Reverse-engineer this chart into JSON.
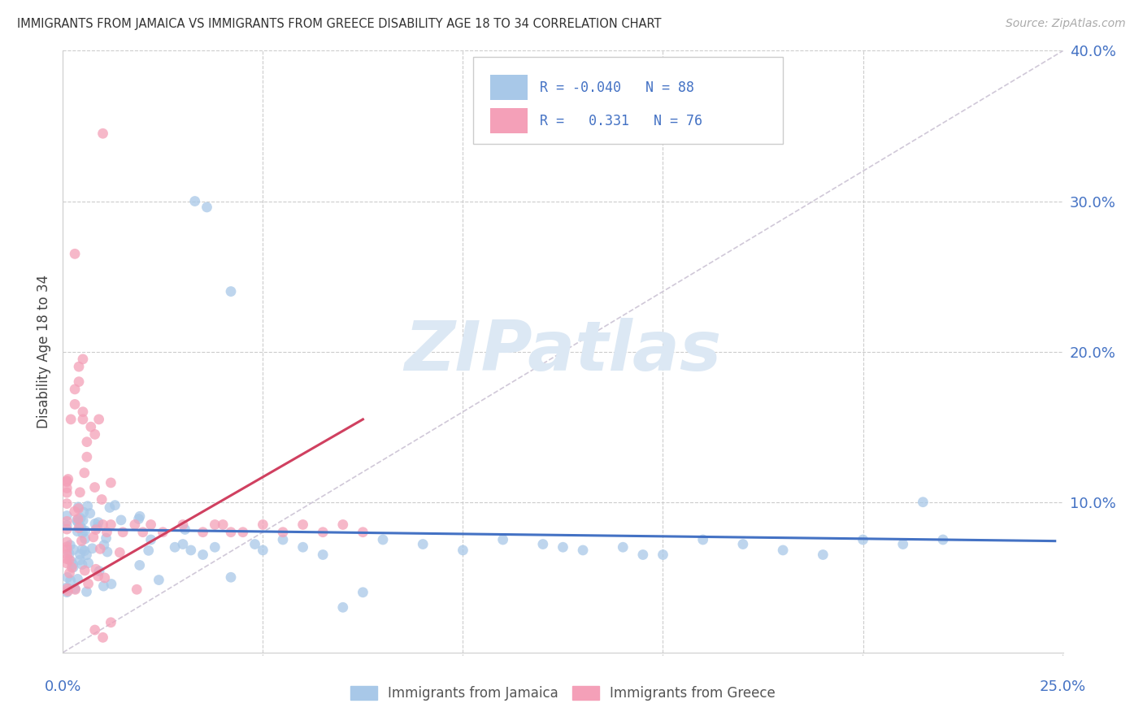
{
  "title": "IMMIGRANTS FROM JAMAICA VS IMMIGRANTS FROM GREECE DISABILITY AGE 18 TO 34 CORRELATION CHART",
  "source": "Source: ZipAtlas.com",
  "ylabel": "Disability Age 18 to 34",
  "xlim": [
    0.0,
    0.25
  ],
  "ylim": [
    0.0,
    0.4
  ],
  "grid_color": "#cccccc",
  "bg_color": "#ffffff",
  "r_jamaica": -0.04,
  "n_jamaica": 88,
  "r_greece": 0.331,
  "n_greece": 76,
  "color_jamaica": "#a8c8e8",
  "color_greece": "#f4a0b8",
  "line_color_jamaica": "#4472c4",
  "line_color_greece": "#d04060",
  "diagonal_color": "#d0c8d8",
  "tick_color": "#4472c4",
  "label_color": "#444444",
  "watermark_color": "#dce8f4",
  "legend_label_jamaica": "Immigrants from Jamaica",
  "legend_label_greece": "Immigrants from Greece"
}
